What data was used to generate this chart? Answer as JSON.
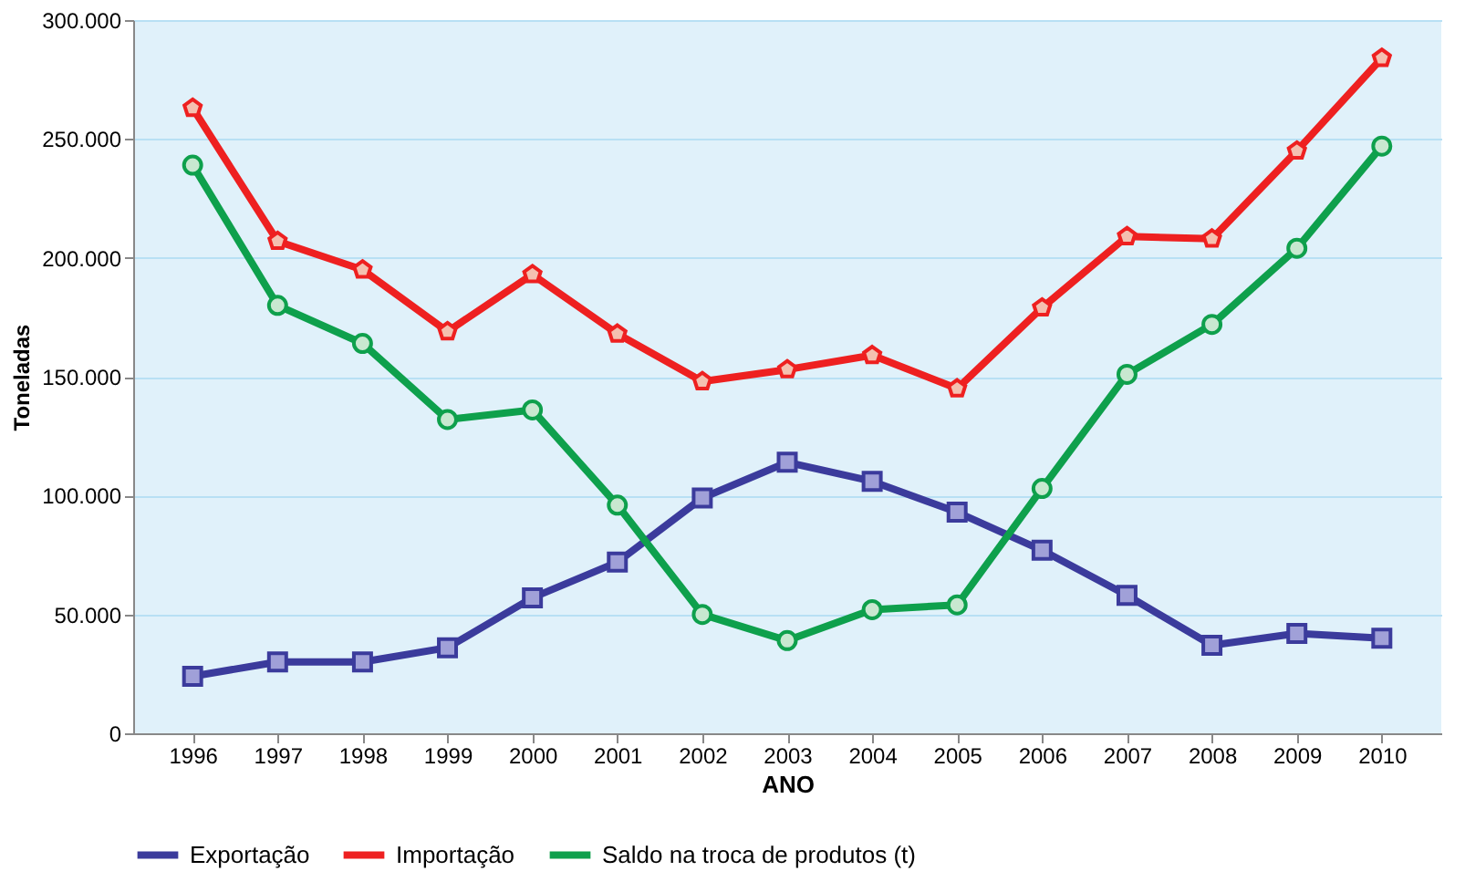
{
  "chart_data": {
    "type": "line",
    "xlabel": "ANO",
    "ylabel": "Toneladas",
    "categories": [
      "1996",
      "1997",
      "1998",
      "1999",
      "2000",
      "2001",
      "2002",
      "2003",
      "2004",
      "2005",
      "2006",
      "2007",
      "2008",
      "2009",
      "2010"
    ],
    "series": [
      {
        "name": "Exportação",
        "color": "#3b3b9c",
        "marker": "square",
        "values": [
          24000,
          30000,
          30000,
          36000,
          57000,
          72000,
          99000,
          114000,
          106000,
          93000,
          77000,
          58000,
          37000,
          42000,
          40000
        ]
      },
      {
        "name": "Importação",
        "color": "#ee2020",
        "marker": "star",
        "values": [
          263000,
          207000,
          195000,
          169000,
          193000,
          168000,
          148000,
          153000,
          159000,
          145000,
          179000,
          209000,
          208000,
          245000,
          284000
        ]
      },
      {
        "name": "Saldo na troca de produtos (t)",
        "color": "#0ea04c",
        "marker": "circle",
        "values": [
          239000,
          180000,
          164000,
          132000,
          136000,
          96000,
          50000,
          39000,
          52000,
          54000,
          103000,
          151000,
          172000,
          204000,
          247000
        ]
      }
    ],
    "ylim": [
      0,
      300000
    ],
    "yticks": [
      0,
      {
        "value": 50000,
        "label": "50.000"
      },
      {
        "value": 100000,
        "label": "100.000"
      },
      {
        "value": 150000,
        "label": "150.000"
      },
      {
        "value": 200000,
        "label": "200.000"
      },
      {
        "value": 250000,
        "label": "250.000"
      },
      {
        "value": 300000,
        "label": "300.000"
      }
    ],
    "grid": "y",
    "legend": "bottom",
    "line_style": "solid"
  }
}
